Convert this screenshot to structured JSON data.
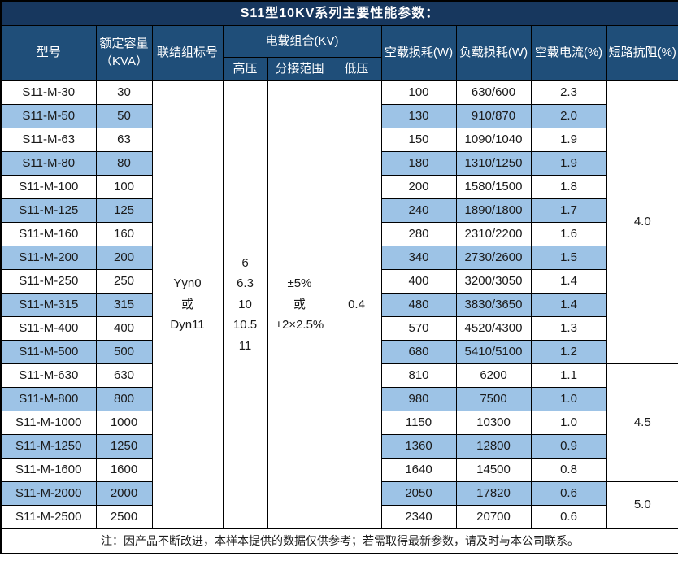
{
  "title": "S11型10KV系列主要性能参数：",
  "header": {
    "model": "型号",
    "capacity": "额定容量\n（KVA）",
    "vector_group": "联结组标号",
    "voltage_combo": "电载组合(KV)",
    "hv": "高压",
    "tap_range": "分接范围",
    "lv": "低压",
    "no_load_loss": "空载损耗(W)",
    "load_loss": "负载损耗(W)",
    "no_load_current": "空载电流(%)",
    "impedance": "短路抗阻(%)"
  },
  "shared": {
    "vector_group_value": "Yyn0\n或\nDyn11",
    "hv_value": "6\n6.3\n10\n10.5\n11",
    "tap_range_value": "±5%\n或\n±2×2.5%",
    "lv_value": "0.4"
  },
  "rows": [
    {
      "model": "S11-M-30",
      "capacity": "30",
      "no_load_loss": "100",
      "load_loss": "630/600",
      "no_load_current": "2.3"
    },
    {
      "model": "S11-M-50",
      "capacity": "50",
      "no_load_loss": "130",
      "load_loss": "910/870",
      "no_load_current": "2.0"
    },
    {
      "model": "S11-M-63",
      "capacity": "63",
      "no_load_loss": "150",
      "load_loss": "1090/1040",
      "no_load_current": "1.9"
    },
    {
      "model": "S11-M-80",
      "capacity": "80",
      "no_load_loss": "180",
      "load_loss": "1310/1250",
      "no_load_current": "1.9"
    },
    {
      "model": "S11-M-100",
      "capacity": "100",
      "no_load_loss": "200",
      "load_loss": "1580/1500",
      "no_load_current": "1.8"
    },
    {
      "model": "S11-M-125",
      "capacity": "125",
      "no_load_loss": "240",
      "load_loss": "1890/1800",
      "no_load_current": "1.7"
    },
    {
      "model": "S11-M-160",
      "capacity": "160",
      "no_load_loss": "280",
      "load_loss": "2310/2200",
      "no_load_current": "1.6"
    },
    {
      "model": "S11-M-200",
      "capacity": "200",
      "no_load_loss": "340",
      "load_loss": "2730/2600",
      "no_load_current": "1.5"
    },
    {
      "model": "S11-M-250",
      "capacity": "250",
      "no_load_loss": "400",
      "load_loss": "3200/3050",
      "no_load_current": "1.4"
    },
    {
      "model": "S11-M-315",
      "capacity": "315",
      "no_load_loss": "480",
      "load_loss": "3830/3650",
      "no_load_current": "1.4"
    },
    {
      "model": "S11-M-400",
      "capacity": "400",
      "no_load_loss": "570",
      "load_loss": "4520/4300",
      "no_load_current": "1.3"
    },
    {
      "model": "S11-M-500",
      "capacity": "500",
      "no_load_loss": "680",
      "load_loss": "5410/5100",
      "no_load_current": "1.2"
    },
    {
      "model": "S11-M-630",
      "capacity": "630",
      "no_load_loss": "810",
      "load_loss": "6200",
      "no_load_current": "1.1"
    },
    {
      "model": "S11-M-800",
      "capacity": "800",
      "no_load_loss": "980",
      "load_loss": "7500",
      "no_load_current": "1.0"
    },
    {
      "model": "S11-M-1000",
      "capacity": "1000",
      "no_load_loss": "1150",
      "load_loss": "10300",
      "no_load_current": "1.0"
    },
    {
      "model": "S11-M-1250",
      "capacity": "1250",
      "no_load_loss": "1360",
      "load_loss": "12800",
      "no_load_current": "0.9"
    },
    {
      "model": "S11-M-1600",
      "capacity": "1600",
      "no_load_loss": "1640",
      "load_loss": "14500",
      "no_load_current": "0.8"
    },
    {
      "model": "S11-M-2000",
      "capacity": "2000",
      "no_load_loss": "2050",
      "load_loss": "17820",
      "no_load_current": "0.6"
    },
    {
      "model": "S11-M-2500",
      "capacity": "2500",
      "no_load_loss": "2340",
      "load_loss": "20700",
      "no_load_current": "0.6"
    }
  ],
  "impedance_groups": [
    {
      "value": "4.0",
      "row_span": 12
    },
    {
      "value": "4.5",
      "row_span": 5
    },
    {
      "value": "5.0",
      "row_span": 2
    }
  ],
  "footer_note": "注：因产品不断改进，本样本提供的数据仅供参考；若需取得最新参数，请及时与本公司联系。",
  "colors": {
    "title_bg": "#17375E",
    "header_bg": "#1F4E79",
    "alt_row_bg": "#9DC3E6",
    "border": "#000000",
    "header_text": "#FFFFFF",
    "body_text": "#1A1A1A"
  }
}
